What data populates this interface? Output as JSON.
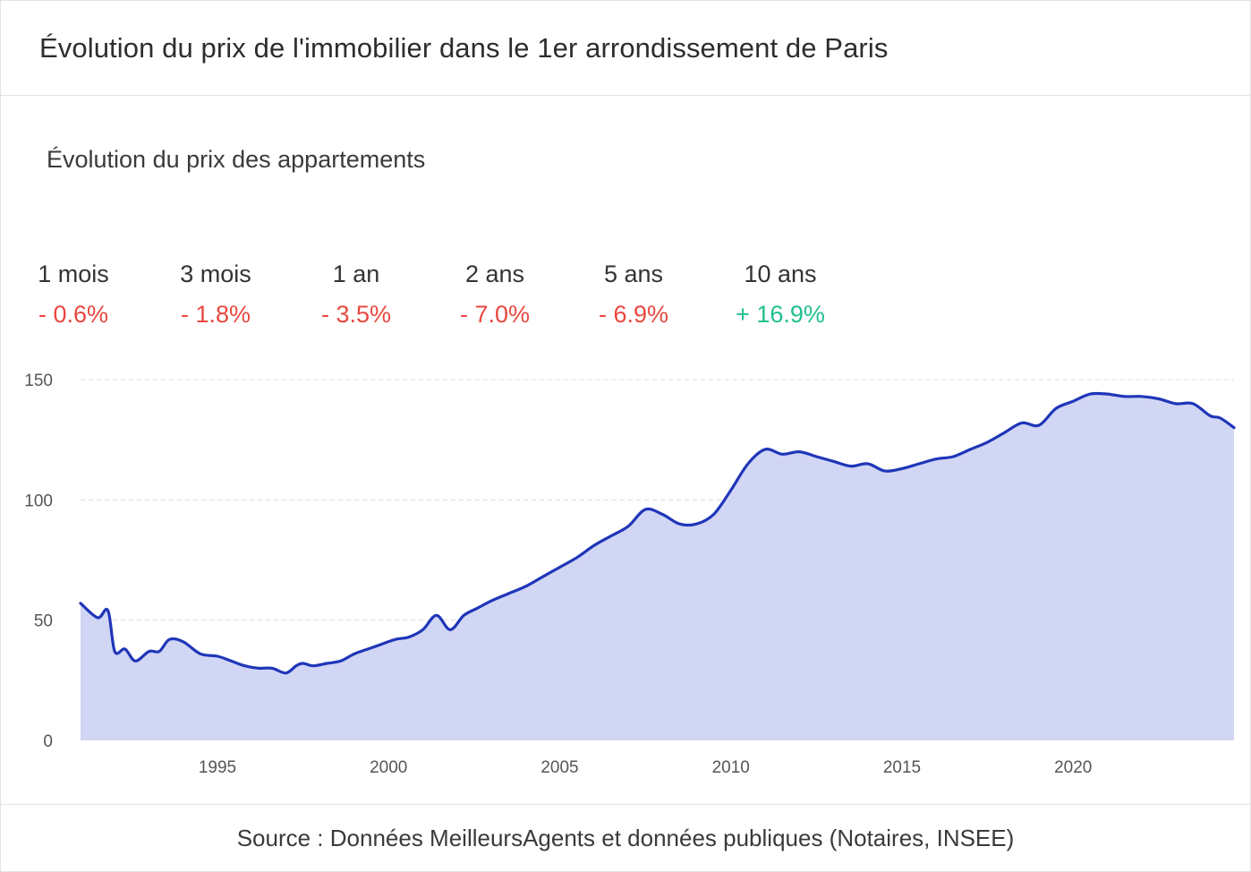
{
  "header": {
    "title": "Évolution du prix de l'immobilier dans le 1er arrondissement de Paris"
  },
  "subtitle": "Évolution du prix des appartements",
  "stats": [
    {
      "period": "1 mois",
      "change": "- 0.6%",
      "trend": "neg"
    },
    {
      "period": "3 mois",
      "change": "- 1.8%",
      "trend": "neg"
    },
    {
      "period": "1 an",
      "change": "- 3.5%",
      "trend": "neg"
    },
    {
      "period": "2 ans",
      "change": "- 7.0%",
      "trend": "neg"
    },
    {
      "period": "5 ans",
      "change": "- 6.9%",
      "trend": "neg"
    },
    {
      "period": "10 ans",
      "change": "+ 16.9%",
      "trend": "pos"
    }
  ],
  "colors": {
    "negative": "#e8483f",
    "positive": "#1fbf8f",
    "line": "#1f36b8",
    "area": "#d1d6f5",
    "grid": "#dcdcdc"
  },
  "footer": {
    "source": "Source : Données MeilleursAgents et données publiques (Notaires, INSEE)"
  },
  "chart_data": {
    "type": "area",
    "title": "",
    "xlabel": "",
    "ylabel": "",
    "xlim": [
      1991,
      2024.7
    ],
    "ylim": [
      0,
      150
    ],
    "y_ticks": [
      0,
      50,
      100,
      150
    ],
    "x_ticks": [
      1995,
      2000,
      2005,
      2010,
      2015,
      2020
    ],
    "grid": true,
    "legend": "none",
    "x": [
      1991.0,
      1991.5,
      1991.8,
      1992.0,
      1992.3,
      1992.6,
      1993.0,
      1993.3,
      1993.6,
      1994.0,
      1994.5,
      1995.0,
      1995.4,
      1995.8,
      1996.2,
      1996.6,
      1997.0,
      1997.3,
      1997.5,
      1997.8,
      1998.2,
      1998.6,
      1999.0,
      1999.4,
      1999.8,
      2000.2,
      2000.6,
      2001.0,
      2001.4,
      2001.8,
      2002.2,
      2002.6,
      2003.0,
      2003.5,
      2004.0,
      2004.5,
      2005.0,
      2005.5,
      2006.0,
      2006.5,
      2007.0,
      2007.5,
      2008.0,
      2008.5,
      2009.0,
      2009.5,
      2010.0,
      2010.5,
      2011.0,
      2011.5,
      2012.0,
      2012.5,
      2013.0,
      2013.5,
      2014.0,
      2014.5,
      2015.0,
      2015.5,
      2016.0,
      2016.5,
      2017.0,
      2017.5,
      2018.0,
      2018.5,
      2019.0,
      2019.5,
      2020.0,
      2020.5,
      2021.0,
      2021.5,
      2022.0,
      2022.5,
      2023.0,
      2023.5,
      2024.0,
      2024.3,
      2024.7
    ],
    "series": [
      {
        "values": [
          57,
          51,
          54,
          37,
          38,
          33,
          37,
          37,
          42,
          41,
          36,
          35,
          33,
          31,
          30,
          30,
          28,
          31,
          32,
          31,
          32,
          33,
          36,
          38,
          40,
          42,
          43,
          46,
          52,
          46,
          52,
          55,
          58,
          61,
          64,
          68,
          72,
          76,
          81,
          85,
          89,
          96,
          94,
          90,
          90,
          94,
          104,
          115,
          121,
          119,
          120,
          118,
          116,
          114,
          115,
          112,
          113,
          115,
          117,
          118,
          121,
          124,
          128,
          132,
          131,
          138,
          141,
          144,
          144,
          143,
          143,
          142,
          140,
          140,
          135,
          134,
          130
        ]
      }
    ]
  }
}
